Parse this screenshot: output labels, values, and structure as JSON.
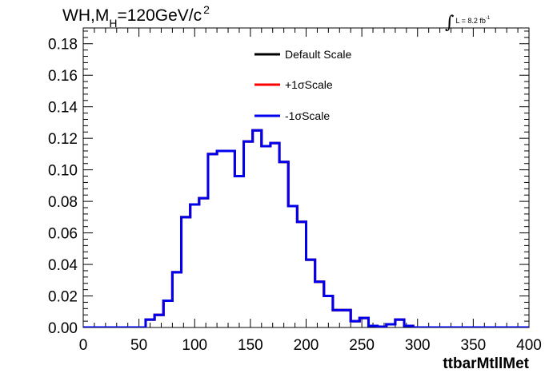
{
  "title": {
    "main": "WH,M",
    "subscript": "H",
    "rest": "=120GeV/c",
    "superscript": "2"
  },
  "luminosity": {
    "integral": "∫",
    "text": "L = 8.2 fb",
    "superscript": "-1"
  },
  "chart_data": {
    "type": "line",
    "style": "step-histogram",
    "xlabel": "ttbarMtllMet",
    "ylabel": "",
    "xlim": [
      0,
      400
    ],
    "ylim": [
      0,
      0.19
    ],
    "x_ticks": [
      "0",
      "50",
      "100",
      "150",
      "200",
      "250",
      "300",
      "350",
      "400"
    ],
    "y_ticks": [
      "0.00",
      "0.02",
      "0.04",
      "0.06",
      "0.08",
      "0.10",
      "0.12",
      "0.14",
      "0.16",
      "0.18"
    ],
    "bin_width": 8,
    "bin_edges": [
      0,
      8,
      16,
      24,
      32,
      40,
      48,
      56,
      64,
      72,
      80,
      88,
      96,
      104,
      112,
      120,
      128,
      136,
      144,
      152,
      160,
      168,
      176,
      184,
      192,
      200,
      208,
      216,
      224,
      232,
      240,
      248,
      256,
      264,
      272,
      280,
      288,
      296,
      304,
      312,
      320,
      328,
      336,
      344,
      352,
      360,
      368,
      376,
      384,
      392,
      400
    ],
    "legend_position": "top-center",
    "series": [
      {
        "name": "Default Scale",
        "color": "#000000",
        "values": [
          0,
          0,
          0,
          0,
          0,
          0,
          0,
          0.005,
          0.008,
          0.017,
          0.035,
          0.07,
          0.078,
          0.082,
          0.11,
          0.112,
          0.112,
          0.096,
          0.118,
          0.125,
          0.115,
          0.117,
          0.105,
          0.077,
          0.067,
          0.043,
          0.029,
          0.02,
          0.011,
          0.011,
          0.004,
          0.006,
          0.001,
          0.0005,
          0.002,
          0.005,
          0.001,
          0,
          0,
          0,
          0,
          0,
          0,
          0,
          0,
          0,
          0,
          0,
          0,
          0
        ]
      },
      {
        "name": "+1σScale",
        "color": "#ff0000",
        "values": [
          0,
          0,
          0,
          0,
          0,
          0,
          0,
          0.005,
          0.008,
          0.017,
          0.035,
          0.07,
          0.078,
          0.082,
          0.11,
          0.112,
          0.112,
          0.096,
          0.118,
          0.125,
          0.115,
          0.117,
          0.105,
          0.077,
          0.067,
          0.043,
          0.029,
          0.02,
          0.011,
          0.011,
          0.004,
          0.006,
          0.001,
          0.0005,
          0.002,
          0.005,
          0.001,
          0,
          0,
          0,
          0,
          0,
          0,
          0,
          0,
          0,
          0,
          0,
          0,
          0
        ]
      },
      {
        "name": "-1σScale",
        "color": "#0000ee",
        "values": [
          0,
          0,
          0,
          0,
          0,
          0,
          0,
          0.005,
          0.008,
          0.017,
          0.035,
          0.07,
          0.078,
          0.082,
          0.11,
          0.112,
          0.112,
          0.096,
          0.118,
          0.125,
          0.115,
          0.117,
          0.105,
          0.077,
          0.067,
          0.043,
          0.029,
          0.02,
          0.011,
          0.011,
          0.004,
          0.006,
          0.001,
          0.0005,
          0.002,
          0.005,
          0.001,
          0,
          0,
          0,
          0,
          0,
          0,
          0,
          0,
          0,
          0,
          0,
          0,
          0
        ]
      }
    ]
  }
}
